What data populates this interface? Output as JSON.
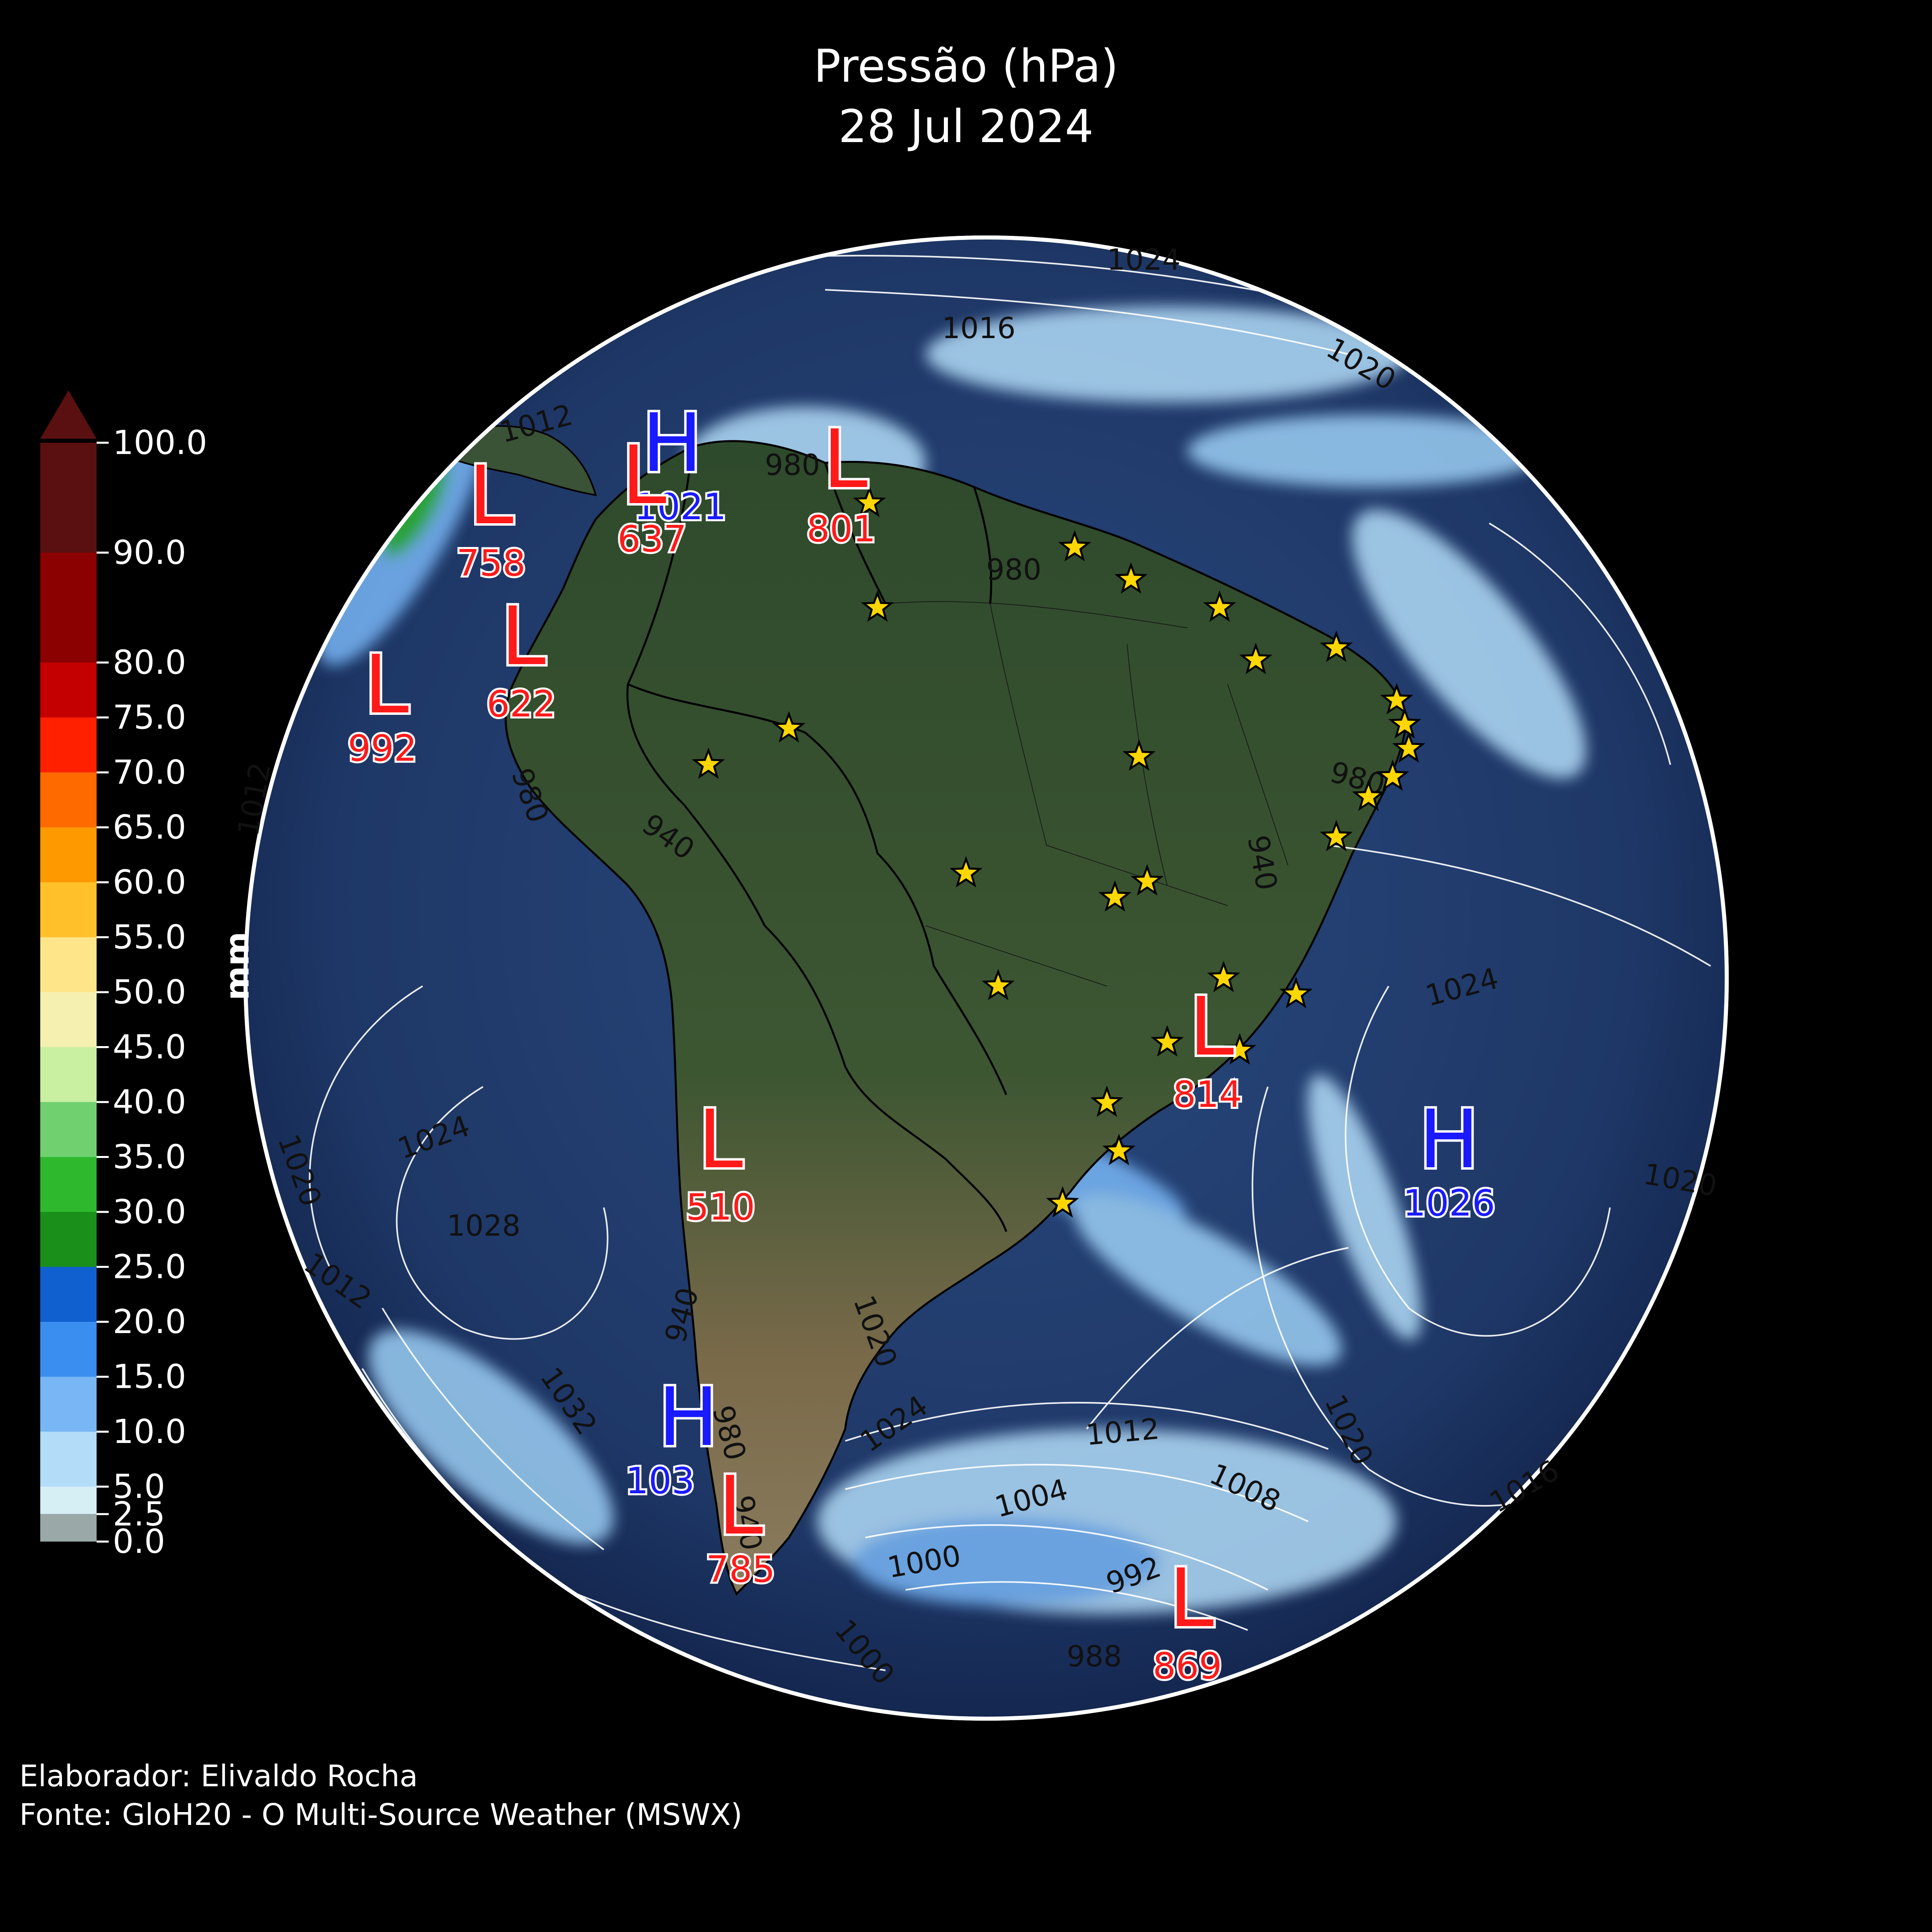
{
  "title": {
    "line1": "Pressão (hPa)",
    "line2": "28 Jul 2024"
  },
  "colorbar": {
    "unit": "mm",
    "ticks": [
      "100.0",
      "90.0",
      "80.0",
      "75.0",
      "70.0",
      "65.0",
      "60.0",
      "55.0",
      "50.0",
      "45.0",
      "40.0",
      "35.0",
      "30.0",
      "25.0",
      "20.0",
      "15.0",
      "10.0",
      "5.0",
      "2.5",
      "0.0"
    ],
    "tick_values": [
      100,
      90,
      80,
      75,
      70,
      65,
      60,
      55,
      50,
      45,
      40,
      35,
      30,
      25,
      20,
      15,
      10,
      5,
      2.5,
      0
    ],
    "colors": [
      "#5a1010",
      "#8b0000",
      "#c40000",
      "#ff2000",
      "#ff6a00",
      "#ff9900",
      "#ffc02a",
      "#ffe58a",
      "#f5f0b0",
      "#c8f0a0",
      "#70d070",
      "#2eb82e",
      "#1a8f1a",
      "#1060d0",
      "#3a8ef0",
      "#78b6f5",
      "#b2dcf8",
      "#d6eff5",
      "#9aa8a8",
      "#2a2a2a"
    ]
  },
  "pressure_centers": [
    {
      "type": "H",
      "value": "1021"
    },
    {
      "type": "L",
      "value": "637"
    },
    {
      "type": "L",
      "value": "758"
    },
    {
      "type": "L",
      "value": "801"
    },
    {
      "type": "L",
      "value": "622"
    },
    {
      "type": "L",
      "value": "992"
    },
    {
      "type": "L",
      "value": "814"
    },
    {
      "type": "H",
      "value": "1026"
    },
    {
      "type": "L",
      "value": "510"
    },
    {
      "type": "H",
      "value": "103"
    },
    {
      "type": "L",
      "value": "785"
    },
    {
      "type": "L",
      "value": "869"
    }
  ],
  "isobar_labels": [
    "1024",
    "1016",
    "1020",
    "1012",
    "980",
    "980",
    "980",
    "940",
    "1012",
    "940",
    "980",
    "1024",
    "1020",
    "1024",
    "1028",
    "1012",
    "1020",
    "940",
    "1032",
    "980",
    "940",
    "1020",
    "1012",
    "1008",
    "1004",
    "1000",
    "992",
    "988",
    "1016",
    "1020",
    "1000",
    "1024"
  ],
  "colors": {
    "low": "#ff1a1a",
    "high": "#1a1aff",
    "star": "#ffd700",
    "ocean": "#1e3766",
    "land": "#2f4a2e"
  },
  "credits": {
    "author": "Elaborador: Elivaldo Rocha",
    "source": "Fonte: GloH20 - O Multi-Source Weather (MSWX)"
  }
}
